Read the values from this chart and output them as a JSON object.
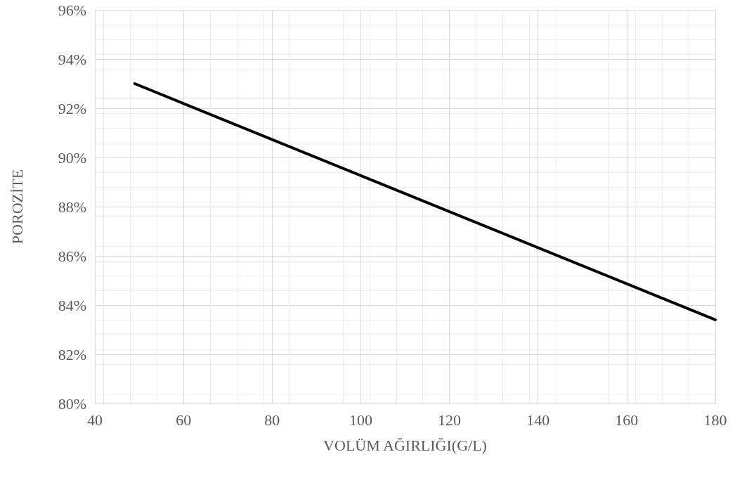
{
  "chart_data": {
    "type": "line",
    "xlabel": "VOLÜM AĞIRLIĞI(G/L)",
    "ylabel": "POROZİTE",
    "x": [
      49,
      180
    ],
    "series": [
      {
        "color": "#000000",
        "values": [
          93.0,
          83.4
        ]
      }
    ],
    "xlim": [
      40,
      180
    ],
    "xticks": [
      40,
      60,
      80,
      100,
      120,
      140,
      160,
      180
    ],
    "ylim": [
      80,
      96
    ],
    "yticks": [
      {
        "value": 80,
        "label": "80%"
      },
      {
        "value": 82,
        "label": "82%"
      },
      {
        "value": 84,
        "label": "84%"
      },
      {
        "value": 86,
        "label": "86%"
      },
      {
        "value": 88,
        "label": "88%"
      },
      {
        "value": 90,
        "label": "90%"
      },
      {
        "value": 92,
        "label": "92%"
      },
      {
        "value": 94,
        "label": "94%"
      },
      {
        "value": 96,
        "label": "96%"
      }
    ],
    "grid": true,
    "marker": "none",
    "line_style": "solid"
  }
}
